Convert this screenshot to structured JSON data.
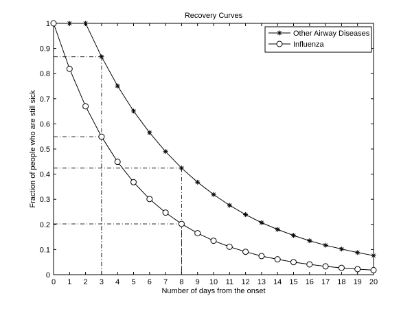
{
  "chart_data": {
    "type": "line",
    "title": "Recovery Curves",
    "xlabel": "Number of days from the onset",
    "ylabel": "Fraction of people who are still sick",
    "xlim": [
      0,
      20
    ],
    "ylim": [
      0,
      1
    ],
    "x_ticks": [
      "0",
      "1",
      "2",
      "3",
      "4",
      "5",
      "6",
      "7",
      "8",
      "9",
      "10",
      "11",
      "12",
      "13",
      "14",
      "15",
      "16",
      "17",
      "18",
      "19",
      "20"
    ],
    "y_ticks": [
      "0",
      "0.1",
      "0.2",
      "0.3",
      "0.4",
      "0.5",
      "0.6",
      "0.7",
      "0.8",
      "0.9",
      "1"
    ],
    "grid": false,
    "legend_position": "top-right",
    "series": [
      {
        "name": "Other Airway Diseases",
        "marker": "asterisk",
        "x": [
          0,
          1,
          2,
          3,
          4,
          5,
          6,
          7,
          8,
          9,
          10,
          11,
          12,
          13,
          14,
          15,
          16,
          17,
          18,
          19,
          20
        ],
        "values": [
          1.0,
          1.0,
          1.0,
          0.867,
          0.751,
          0.651,
          0.565,
          0.49,
          0.424,
          0.368,
          0.319,
          0.276,
          0.239,
          0.207,
          0.18,
          0.156,
          0.135,
          0.117,
          0.102,
          0.088,
          0.076
        ]
      },
      {
        "name": "Influenza",
        "marker": "circle",
        "x": [
          0,
          1,
          2,
          3,
          4,
          5,
          6,
          7,
          8,
          9,
          10,
          11,
          12,
          13,
          14,
          15,
          16,
          17,
          18,
          19,
          20
        ],
        "values": [
          1.0,
          0.819,
          0.67,
          0.549,
          0.449,
          0.368,
          0.301,
          0.247,
          0.202,
          0.165,
          0.135,
          0.111,
          0.091,
          0.074,
          0.061,
          0.05,
          0.041,
          0.033,
          0.027,
          0.022,
          0.018
        ]
      }
    ],
    "reference_lines": [
      {
        "x": 3,
        "y": 0.867
      },
      {
        "x": 3,
        "y": 0.549
      },
      {
        "x": 8,
        "y": 0.424
      },
      {
        "x": 8,
        "y": 0.202
      }
    ],
    "colors": {
      "line": "#000000",
      "background": "#ffffff"
    }
  }
}
